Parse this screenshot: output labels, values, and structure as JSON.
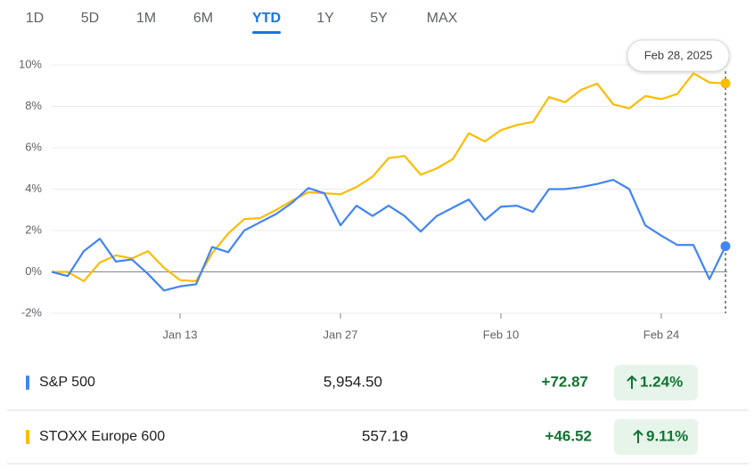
{
  "ranges": [
    "1D",
    "5D",
    "1M",
    "6M",
    "YTD",
    "1Y",
    "5Y",
    "MAX"
  ],
  "active_range": 4,
  "chart_data": {
    "type": "line",
    "categories": [
      null,
      null,
      null,
      null,
      null,
      null,
      null,
      null,
      "Jan 13",
      null,
      null,
      null,
      null,
      null,
      null,
      null,
      null,
      null,
      "Jan 27",
      null,
      null,
      null,
      null,
      null,
      null,
      null,
      null,
      null,
      "Feb 10",
      null,
      null,
      null,
      null,
      null,
      null,
      null,
      null,
      null,
      "Feb 24",
      null,
      null,
      null,
      null
    ],
    "series": [
      {
        "name": "S&P 500",
        "color": "#4285f4",
        "values": [
          0,
          -0.2,
          1.0,
          1.6,
          0.5,
          0.6,
          -0.1,
          -0.9,
          -0.7,
          -0.6,
          1.2,
          0.95,
          2.0,
          2.4,
          2.8,
          3.35,
          4.05,
          3.8,
          2.25,
          3.2,
          2.7,
          3.2,
          2.7,
          1.95,
          2.7,
          3.1,
          3.5,
          2.5,
          3.15,
          3.2,
          2.9,
          4.0,
          4.0,
          4.1,
          4.25,
          4.45,
          4.0,
          2.25,
          1.75,
          1.3,
          1.3,
          -0.35,
          1.24
        ]
      },
      {
        "name": "STOXX Europe 600",
        "color": "#fbbc04",
        "values": [
          0,
          0,
          -0.45,
          0.45,
          0.8,
          0.65,
          1.0,
          0.2,
          -0.4,
          -0.45,
          0.9,
          1.85,
          2.55,
          2.6,
          3.0,
          3.45,
          3.85,
          3.8,
          3.75,
          4.1,
          4.6,
          5.5,
          5.6,
          4.7,
          5.0,
          5.45,
          6.7,
          6.3,
          6.85,
          7.1,
          7.25,
          8.45,
          8.2,
          8.8,
          9.1,
          8.1,
          7.9,
          8.5,
          8.35,
          8.6,
          9.6,
          9.15,
          9.11
        ]
      }
    ],
    "ylim": [
      -2,
      10
    ],
    "yticks": [
      {
        "value": -2,
        "label": "-2%"
      },
      {
        "value": 0,
        "label": "0%"
      },
      {
        "value": 2,
        "label": "2%"
      },
      {
        "value": 4,
        "label": "4%"
      },
      {
        "value": 6,
        "label": "6%"
      },
      {
        "value": 8,
        "label": "8%"
      },
      {
        "value": 10,
        "label": "10%"
      }
    ],
    "grid": true,
    "tooltip": "Feb 28, 2025"
  },
  "quotes": [
    {
      "price": "5,954.50",
      "change": "+72.87",
      "change_percent": "1.24%"
    },
    {
      "price": "557.19",
      "change": "+46.52",
      "change_percent": "9.11%"
    }
  ]
}
